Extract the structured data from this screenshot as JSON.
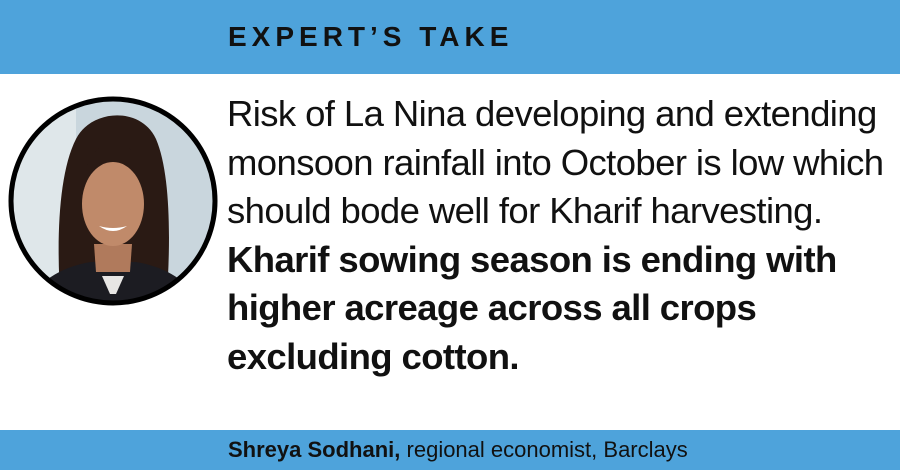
{
  "header": {
    "title": "EXPERT’S TAKE"
  },
  "quote": {
    "regular": "Risk of La Nina developing and extending monsoon rainfall into October is low which should bode well for Kharif harvesting.",
    "bold": "Kharif sowing season is ending with higher acreage across all crops excluding cotton."
  },
  "attribution": {
    "name": "Shreya Sodhani,",
    "role": "regional economist, Barclays"
  }
}
